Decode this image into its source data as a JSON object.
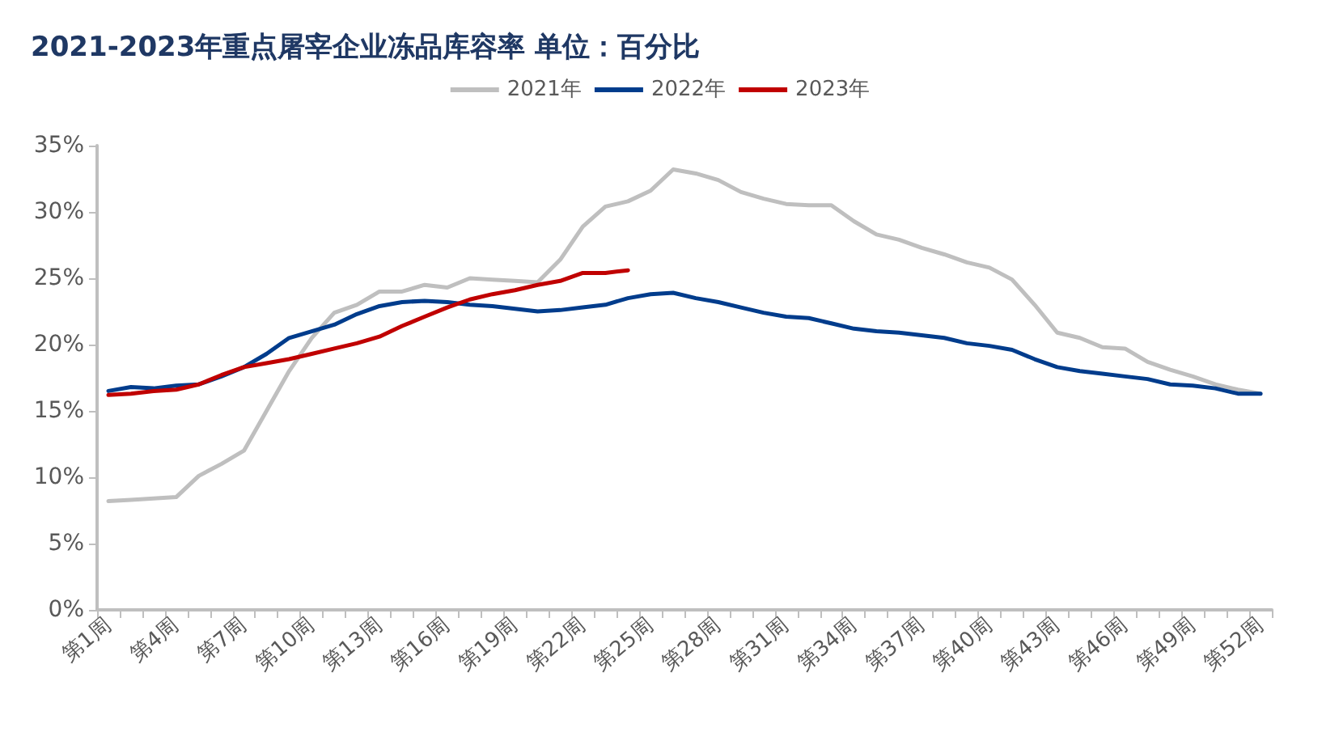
{
  "chart_data": {
    "type": "line",
    "title": "2021-2023年重点屠宰企业冻品库容率 单位：百分比",
    "categories": [
      "第1周",
      null,
      null,
      "第4周",
      null,
      null,
      "第7周",
      null,
      null,
      "第10周",
      null,
      null,
      "第13周",
      null,
      null,
      "第16周",
      null,
      null,
      "第19周",
      null,
      null,
      "第22周",
      null,
      null,
      "第25周",
      null,
      null,
      "第28周",
      null,
      null,
      "第31周",
      null,
      null,
      "第34周",
      null,
      null,
      "第37周",
      null,
      null,
      "第40周",
      null,
      null,
      "第43周",
      null,
      null,
      "第46周",
      null,
      null,
      "第49周",
      null,
      null,
      "第52周"
    ],
    "series": [
      {
        "name": "2021年",
        "color": "#bfbfbf",
        "values": [
          8.2,
          8.3,
          8.4,
          8.5,
          10.1,
          11.0,
          12.0,
          15.0,
          18.0,
          20.5,
          22.4,
          23.0,
          24.0,
          24.0,
          24.5,
          24.3,
          25.0,
          24.9,
          24.8,
          24.7,
          26.4,
          28.9,
          30.4,
          30.8,
          31.6,
          33.2,
          32.9,
          32.4,
          31.5,
          31.0,
          30.6,
          30.5,
          30.5,
          29.3,
          28.3,
          27.9,
          27.3,
          26.8,
          26.2,
          25.8,
          24.9,
          23.0,
          20.9,
          20.5,
          19.8,
          19.7,
          18.7,
          18.1,
          17.6,
          17.0,
          16.6,
          16.3
        ]
      },
      {
        "name": "2022年",
        "color": "#003c8c",
        "values": [
          16.5,
          16.8,
          16.7,
          16.9,
          17.0,
          17.6,
          18.3,
          19.3,
          20.5,
          21.0,
          21.5,
          22.3,
          22.9,
          23.2,
          23.3,
          23.2,
          23.0,
          22.9,
          22.7,
          22.5,
          22.6,
          22.8,
          23.0,
          23.5,
          23.8,
          23.9,
          23.5,
          23.2,
          22.8,
          22.4,
          22.1,
          22.0,
          21.6,
          21.2,
          21.0,
          20.9,
          20.7,
          20.5,
          20.1,
          19.9,
          19.6,
          18.9,
          18.3,
          18.0,
          17.8,
          17.6,
          17.4,
          17.0,
          16.9,
          16.7,
          16.3,
          16.3
        ]
      },
      {
        "name": "2023年",
        "color": "#c00000",
        "values": [
          16.2,
          16.3,
          16.5,
          16.6,
          17.0,
          17.7,
          18.3,
          18.6,
          18.9,
          19.3,
          19.7,
          20.1,
          20.6,
          21.4,
          22.1,
          22.8,
          23.4,
          23.8,
          24.1,
          24.5,
          24.8,
          25.4,
          25.4,
          25.6,
          null,
          null,
          null,
          null,
          null,
          null,
          null,
          null,
          null,
          null,
          null,
          null,
          null,
          null,
          null,
          null,
          null,
          null,
          null,
          null,
          null,
          null,
          null,
          null,
          null,
          null,
          null,
          null
        ]
      }
    ],
    "ylim": [
      0,
      35
    ],
    "yticks": [
      {
        "value": 0,
        "label": "0%"
      },
      {
        "value": 5,
        "label": "5%"
      },
      {
        "value": 10,
        "label": "10%"
      },
      {
        "value": 15,
        "label": "15%"
      },
      {
        "value": 20,
        "label": "20%"
      },
      {
        "value": 25,
        "label": "25%"
      },
      {
        "value": 30,
        "label": "30%"
      },
      {
        "value": 35,
        "label": "35%"
      }
    ],
    "legend": "top",
    "grid": false,
    "marker": "none",
    "line_style": "solid"
  }
}
